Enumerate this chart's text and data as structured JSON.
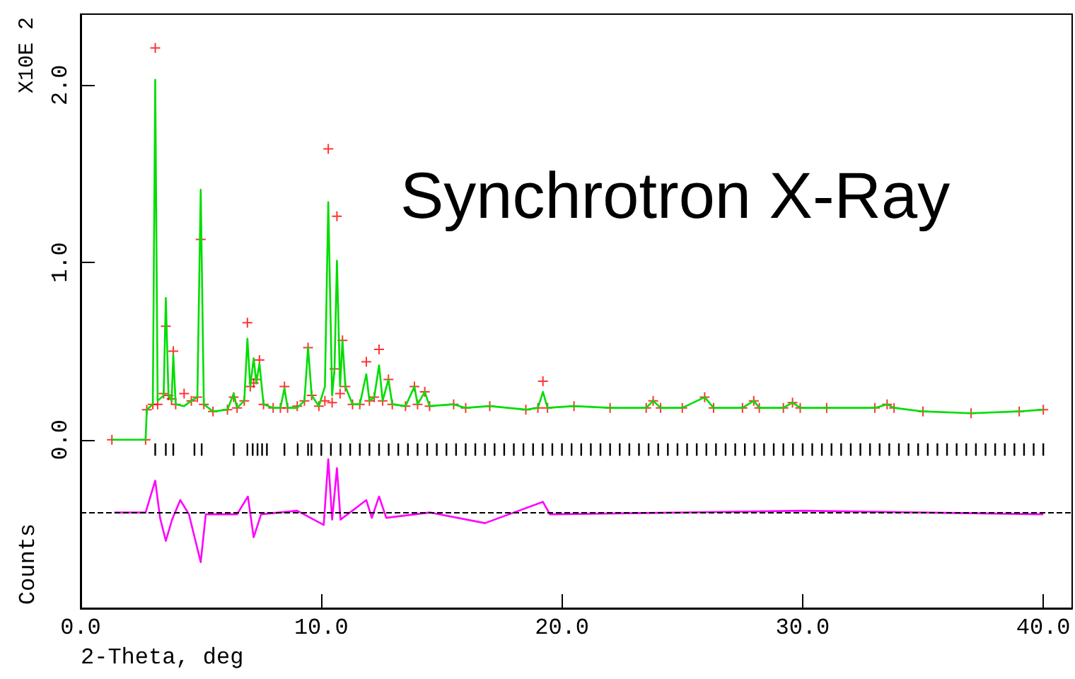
{
  "chart_data": {
    "type": "scatter",
    "xlabel": "2-Theta, deg",
    "ylabel": "Counts",
    "annotations": [
      "X10E 2",
      "Synchrotron X-Ray"
    ],
    "xlim": [
      0,
      41.2
    ],
    "ylim": [
      -0.95,
      2.4
    ],
    "xticks": [
      {
        "value": 0,
        "label": "0.0"
      },
      {
        "value": 10,
        "label": "10.0"
      },
      {
        "value": 20,
        "label": "20.0"
      },
      {
        "value": 30,
        "label": "30.0"
      },
      {
        "value": 40,
        "label": "40.0"
      }
    ],
    "yticks": [
      {
        "value": 0,
        "label": "0.0"
      },
      {
        "value": 1,
        "label": "1.0"
      },
      {
        "value": 2,
        "label": "2.0"
      }
    ],
    "grid": false,
    "ref_lines": [
      {
        "axis": "y",
        "value": -0.41,
        "label": null,
        "color": "#000000",
        "line_style": "dashed"
      }
    ],
    "series": [
      {
        "color": "#ff0000",
        "marker": "cross",
        "x": [
          1.3,
          2.7,
          2.75,
          3.0,
          3.1,
          3.2,
          3.45,
          3.54,
          3.65,
          3.78,
          3.85,
          3.95,
          4.3,
          4.6,
          4.85,
          4.99,
          5.12,
          5.5,
          6.1,
          6.36,
          6.5,
          6.8,
          6.93,
          7.05,
          7.19,
          7.3,
          7.43,
          7.6,
          8.0,
          8.3,
          8.47,
          8.6,
          9.0,
          9.3,
          9.45,
          9.6,
          9.9,
          10.15,
          10.29,
          10.45,
          10.55,
          10.65,
          10.78,
          10.88,
          11.0,
          11.3,
          11.6,
          11.87,
          12.0,
          12.2,
          12.4,
          12.55,
          12.79,
          12.95,
          13.5,
          13.87,
          14.0,
          14.3,
          14.5,
          15.5,
          16.0,
          17.0,
          18.5,
          19.0,
          19.21,
          19.4,
          20.5,
          22.0,
          23.5,
          23.79,
          24.1,
          25.0,
          25.93,
          26.3,
          27.5,
          27.97,
          28.2,
          29.2,
          29.58,
          29.9,
          31.0,
          33.0,
          33.51,
          33.8,
          35.0,
          37.0,
          39.0,
          40.0
        ],
        "values": [
          0,
          0,
          0.17,
          0.2,
          2.21,
          0.2,
          0.26,
          0.64,
          0.25,
          0.23,
          0.5,
          0.2,
          0.26,
          0.22,
          0.24,
          1.13,
          0.2,
          0.16,
          0.17,
          0.24,
          0.18,
          0.22,
          0.66,
          0.3,
          0.32,
          0.34,
          0.45,
          0.2,
          0.18,
          0.18,
          0.3,
          0.18,
          0.19,
          0.22,
          0.52,
          0.25,
          0.19,
          0.22,
          1.64,
          0.21,
          0.4,
          1.26,
          0.26,
          0.56,
          0.3,
          0.2,
          0.2,
          0.44,
          0.22,
          0.24,
          0.51,
          0.22,
          0.34,
          0.2,
          0.19,
          0.3,
          0.2,
          0.27,
          0.19,
          0.2,
          0.18,
          0.19,
          0.17,
          0.18,
          0.33,
          0.18,
          0.19,
          0.18,
          0.18,
          0.22,
          0.18,
          0.18,
          0.24,
          0.18,
          0.18,
          0.22,
          0.18,
          0.18,
          0.21,
          0.18,
          0.18,
          0.18,
          0.2,
          0.18,
          0.16,
          0.15,
          0.16,
          0.17
        ]
      },
      {
        "type": "line",
        "color": "#00dd00",
        "x": [
          1.3,
          2.7,
          2.75,
          3.0,
          3.1,
          3.2,
          3.45,
          3.54,
          3.65,
          3.78,
          3.85,
          3.95,
          4.3,
          4.6,
          4.85,
          4.99,
          5.12,
          5.5,
          6.1,
          6.36,
          6.5,
          6.8,
          6.93,
          7.05,
          7.19,
          7.3,
          7.43,
          7.6,
          8.0,
          8.3,
          8.47,
          8.6,
          9.0,
          9.3,
          9.45,
          9.6,
          9.9,
          10.15,
          10.29,
          10.45,
          10.55,
          10.65,
          10.78,
          10.88,
          11.0,
          11.3,
          11.6,
          11.87,
          12.0,
          12.2,
          12.4,
          12.55,
          12.79,
          12.95,
          13.5,
          13.87,
          14.0,
          14.3,
          14.5,
          15.5,
          16.0,
          17.0,
          18.5,
          19.0,
          19.21,
          19.4,
          20.5,
          22.0,
          23.5,
          23.79,
          24.1,
          25.0,
          25.93,
          26.3,
          27.5,
          27.97,
          28.2,
          29.2,
          29.58,
          29.9,
          31.0,
          33.0,
          33.51,
          33.8,
          35.0,
          37.0,
          39.0,
          40.0
        ],
        "values": [
          0,
          0,
          0.17,
          0.2,
          2.03,
          0.22,
          0.25,
          0.8,
          0.25,
          0.22,
          0.48,
          0.2,
          0.19,
          0.22,
          0.24,
          1.41,
          0.2,
          0.16,
          0.17,
          0.26,
          0.18,
          0.22,
          0.57,
          0.3,
          0.46,
          0.32,
          0.43,
          0.2,
          0.18,
          0.18,
          0.29,
          0.18,
          0.18,
          0.22,
          0.52,
          0.25,
          0.19,
          0.3,
          1.34,
          0.25,
          0.4,
          1.01,
          0.3,
          0.56,
          0.3,
          0.2,
          0.2,
          0.37,
          0.22,
          0.24,
          0.42,
          0.22,
          0.34,
          0.2,
          0.19,
          0.3,
          0.2,
          0.27,
          0.19,
          0.2,
          0.18,
          0.19,
          0.17,
          0.18,
          0.27,
          0.18,
          0.19,
          0.18,
          0.18,
          0.22,
          0.18,
          0.18,
          0.24,
          0.18,
          0.18,
          0.22,
          0.18,
          0.18,
          0.21,
          0.18,
          0.18,
          0.18,
          0.2,
          0.18,
          0.16,
          0.15,
          0.16,
          0.17
        ]
      },
      {
        "type": "line",
        "color": "#ff00ff",
        "x": [
          1.4,
          2.7,
          3.1,
          3.3,
          3.54,
          3.8,
          4.14,
          4.5,
          4.99,
          5.2,
          6.5,
          6.95,
          7.19,
          7.5,
          9.0,
          10.1,
          10.29,
          10.45,
          10.65,
          10.8,
          11.87,
          12.1,
          12.4,
          12.7,
          14.5,
          16.8,
          19.21,
          19.5,
          25,
          30,
          35,
          40
        ],
        "values": [
          -0.41,
          -0.41,
          -0.23,
          -0.44,
          -0.57,
          -0.45,
          -0.34,
          -0.42,
          -0.69,
          -0.42,
          -0.42,
          -0.32,
          -0.55,
          -0.42,
          -0.4,
          -0.48,
          -0.11,
          -0.45,
          -0.16,
          -0.45,
          -0.34,
          -0.44,
          -0.32,
          -0.44,
          -0.41,
          -0.47,
          -0.35,
          -0.42,
          -0.41,
          -0.4,
          -0.41,
          -0.42
        ]
      },
      {
        "type": "bar",
        "color": "#000000",
        "base": [
          -0.09,
          -0.09,
          -0.09,
          -0.09,
          -0.09,
          -0.09,
          -0.09,
          -0.09,
          -0.09,
          -0.09,
          -0.09,
          -0.09,
          -0.09,
          -0.09,
          -0.09,
          -0.09,
          -0.09,
          -0.09,
          -0.09,
          -0.09,
          -0.09,
          -0.09,
          -0.09,
          -0.09,
          -0.09,
          -0.09,
          -0.09,
          -0.09,
          -0.09,
          -0.09,
          -0.09,
          -0.09,
          -0.09,
          -0.09,
          -0.09,
          -0.09,
          -0.09,
          -0.09,
          -0.09,
          -0.09,
          -0.09,
          -0.09,
          -0.09,
          -0.09,
          -0.09,
          -0.09,
          -0.09,
          -0.09,
          -0.09,
          -0.09,
          -0.09,
          -0.09,
          -0.09,
          -0.09,
          -0.09,
          -0.09,
          -0.09,
          -0.09,
          -0.09,
          -0.09,
          -0.09,
          -0.09,
          -0.09,
          -0.09,
          -0.09,
          -0.09,
          -0.09,
          -0.09,
          -0.09,
          -0.09,
          -0.09,
          -0.09,
          -0.09,
          -0.09,
          -0.09,
          -0.09,
          -0.09,
          -0.09,
          -0.09,
          -0.09,
          -0.09,
          -0.09,
          -0.09,
          -0.09,
          -0.09,
          -0.09,
          -0.09,
          -0.09,
          -0.09,
          -0.09,
          -0.09
        ],
        "x": [
          3.1,
          3.54,
          3.85,
          4.73,
          5.03,
          6.36,
          6.93,
          7.15,
          7.35,
          7.54,
          7.74,
          8.47,
          9.02,
          9.45,
          9.59,
          10.0,
          10.4,
          10.8,
          11.2,
          11.6,
          12.0,
          12.4,
          12.8,
          13.2,
          13.6,
          14.0,
          14.4,
          14.8,
          15.2,
          15.6,
          16.0,
          16.4,
          16.8,
          17.2,
          17.6,
          18.0,
          18.4,
          18.8,
          19.2,
          19.6,
          20.0,
          20.4,
          20.8,
          21.2,
          21.6,
          22.0,
          22.4,
          22.8,
          23.2,
          23.6,
          24.0,
          24.4,
          24.8,
          25.2,
          25.6,
          26.0,
          26.4,
          26.8,
          27.2,
          27.6,
          28.0,
          28.4,
          28.8,
          29.2,
          29.6,
          30.0,
          30.4,
          30.8,
          31.2,
          31.6,
          32.0,
          32.4,
          32.8,
          33.2,
          33.6,
          34.0,
          34.4,
          34.8,
          35.2,
          35.6,
          36.0,
          36.4,
          36.8,
          37.2,
          37.6,
          38.0,
          38.4,
          38.8,
          39.2,
          39.6,
          40.0
        ],
        "values": [
          0.07,
          0.07,
          0.07,
          0.07,
          0.07,
          0.07,
          0.07,
          0.07,
          0.07,
          0.07,
          0.07,
          0.07,
          0.07,
          0.07,
          0.07,
          0.07,
          0.07,
          0.07,
          0.07,
          0.07,
          0.07,
          0.07,
          0.07,
          0.07,
          0.07,
          0.07,
          0.07,
          0.07,
          0.07,
          0.07,
          0.07,
          0.07,
          0.07,
          0.07,
          0.07,
          0.07,
          0.07,
          0.07,
          0.07,
          0.07,
          0.07,
          0.07,
          0.07,
          0.07,
          0.07,
          0.07,
          0.07,
          0.07,
          0.07,
          0.07,
          0.07,
          0.07,
          0.07,
          0.07,
          0.07,
          0.07,
          0.07,
          0.07,
          0.07,
          0.07,
          0.07,
          0.07,
          0.07,
          0.07,
          0.07,
          0.07,
          0.07,
          0.07,
          0.07,
          0.07,
          0.07,
          0.07,
          0.07,
          0.07,
          0.07,
          0.07,
          0.07,
          0.07,
          0.07,
          0.07,
          0.07,
          0.07,
          0.07,
          0.07,
          0.07,
          0.07,
          0.07,
          0.07,
          0.07,
          0.07,
          0.07
        ]
      }
    ]
  }
}
